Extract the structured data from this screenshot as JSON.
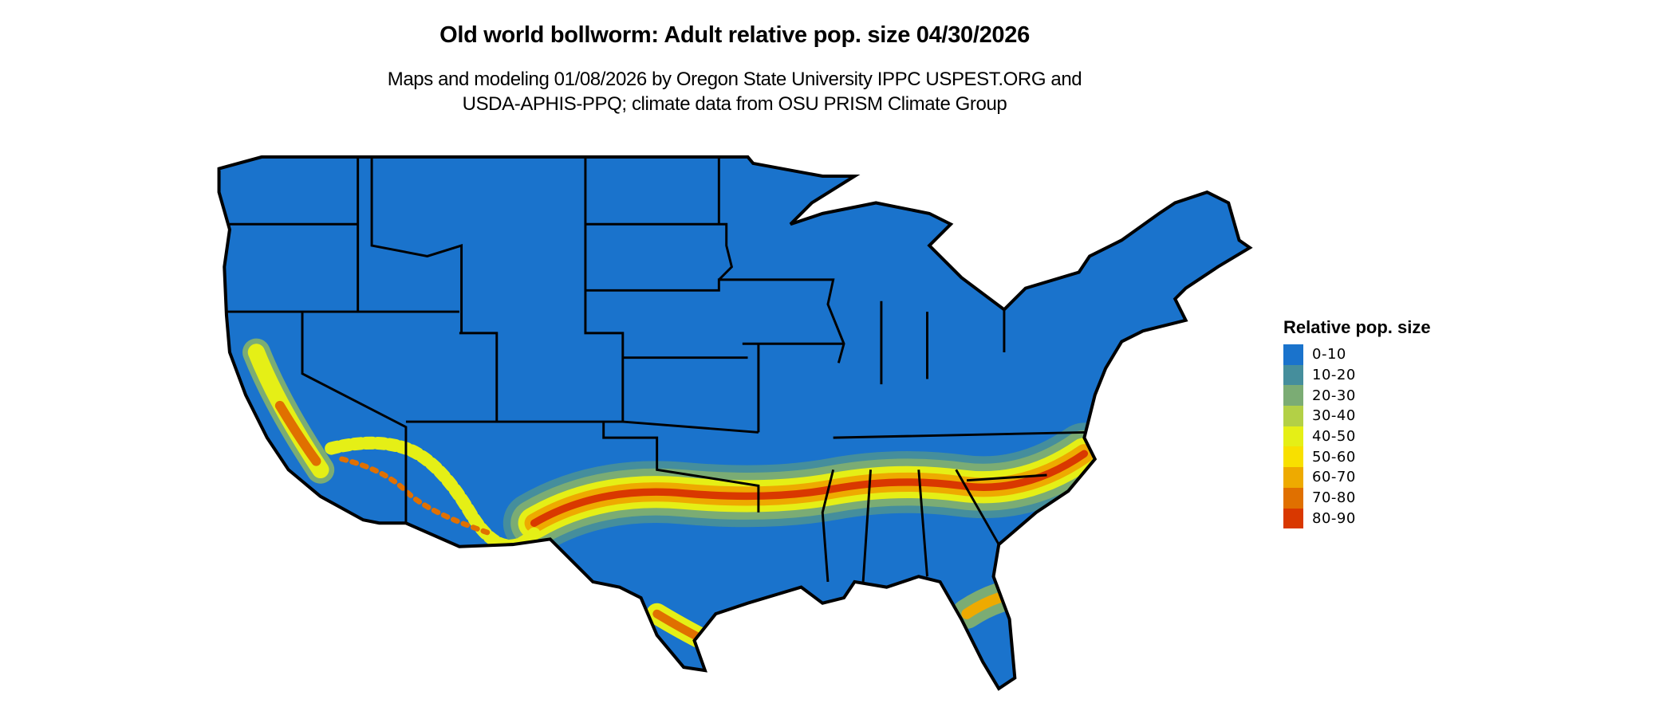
{
  "title": "Old world bollworm: Adult relative pop. size 04/30/2026",
  "subtitle_lines": [
    "Maps and modeling 01/08/2026 by Oregon State University IPPC USPEST.ORG and",
    "USDA-APHIS-PPQ; climate data from OSU PRISM Climate Group"
  ],
  "legend": {
    "title": "Relative pop. size",
    "items": [
      {
        "label": "0-10",
        "color": "#1a73cc"
      },
      {
        "label": "10-20",
        "color": "#458e9c"
      },
      {
        "label": "20-30",
        "color": "#7bac74"
      },
      {
        "label": "30-40",
        "color": "#b3d046"
      },
      {
        "label": "40-50",
        "color": "#e5ef16"
      },
      {
        "label": "50-60",
        "color": "#f8e000"
      },
      {
        "label": "60-70",
        "color": "#eeaa00"
      },
      {
        "label": "70-80",
        "color": "#e07000"
      },
      {
        "label": "80-90",
        "color": "#d93800"
      }
    ]
  },
  "map": {
    "region": "contiguous United States",
    "borders": "state boundaries"
  }
}
